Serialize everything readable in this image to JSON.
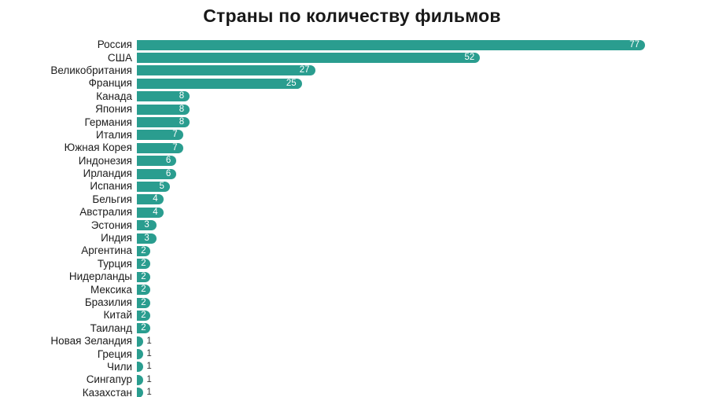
{
  "chart_data": {
    "type": "bar",
    "orientation": "horizontal",
    "title": "Страны по количеству фильмов",
    "categories": [
      "Россия",
      "США",
      "Великобритания",
      "Франция",
      "Канада",
      "Япония",
      "Германия",
      "Италия",
      "Южная Корея",
      "Индонезия",
      "Ирландия",
      "Испания",
      "Бельгия",
      "Австралия",
      "Эстония",
      "Индия",
      "Аргентина",
      "Турция",
      "Нидерланды",
      "Мексика",
      "Бразилия",
      "Китай",
      "Таиланд",
      "Новая Зеландия",
      "Греция",
      "Чили",
      "Сингапур",
      "Казахстан"
    ],
    "values": [
      77,
      52,
      27,
      25,
      8,
      8,
      8,
      7,
      7,
      6,
      6,
      5,
      4,
      4,
      3,
      3,
      2,
      2,
      2,
      2,
      2,
      2,
      2,
      1,
      1,
      1,
      1,
      1
    ],
    "xlim": [
      0,
      77
    ],
    "grid": false,
    "legend": false,
    "value_labels": "shown, inside bar when value >= 2, outside when value = 1",
    "colors": {
      "bar": "#2a9d8f",
      "value_inside": "#ffffff",
      "value_outside": "#333333",
      "label": "#1c1c1c",
      "title": "#191919",
      "background": "#ffffff"
    }
  }
}
